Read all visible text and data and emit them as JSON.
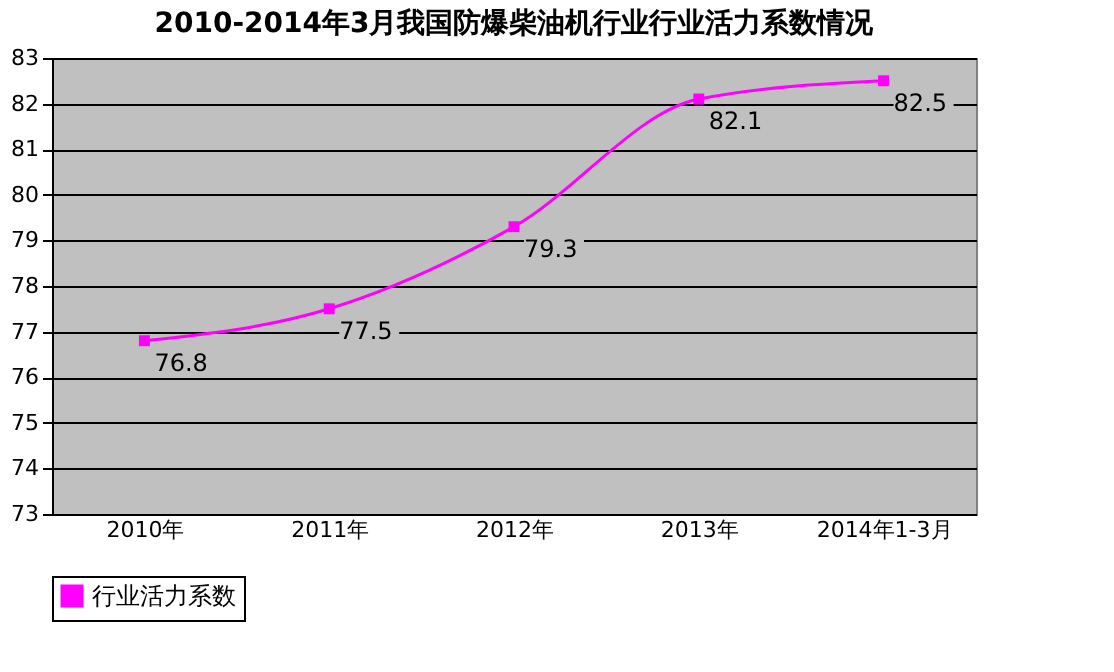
{
  "chart_data": {
    "type": "line",
    "title": "2010-2014年3月我国防爆柴油机行业行业活力系数情况",
    "categories": [
      "2010年",
      "2011年",
      "2012年",
      "2013年",
      "2014年1-3月"
    ],
    "series": [
      {
        "name": "行业活力系数",
        "color": "#ff00ff",
        "values": [
          76.8,
          77.5,
          79.3,
          82.1,
          82.5
        ]
      }
    ],
    "ylim": [
      73,
      83
    ],
    "yticks": [
      73,
      74,
      75,
      76,
      77,
      78,
      79,
      80,
      81,
      82,
      83
    ],
    "grid": "y",
    "legend": "bottom",
    "marker": "square",
    "data_labels": true
  }
}
